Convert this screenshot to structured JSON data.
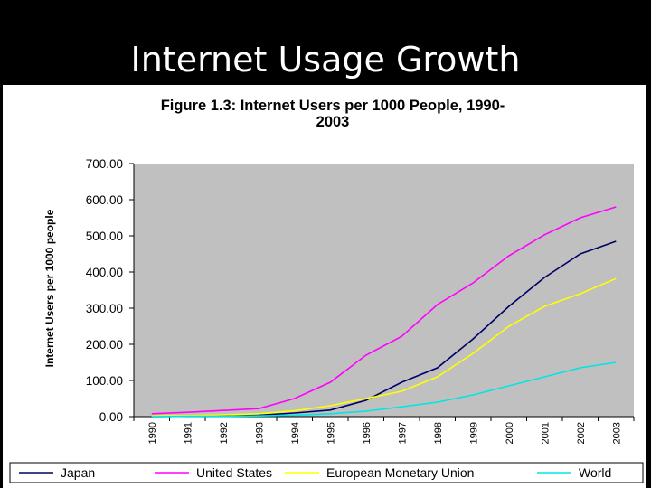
{
  "slide": {
    "title": "Internet Usage Growth"
  },
  "chart_data": {
    "type": "line",
    "title_line1": "Figure 1.3: Internet Users per 1000 People, 1990-",
    "title_line2": "2003",
    "ylabel": "Internet Users per 1000 people",
    "xlabel": "",
    "ylim": [
      0,
      700
    ],
    "yticks": [
      "0.00",
      "100.00",
      "200.00",
      "300.00",
      "400.00",
      "500.00",
      "600.00",
      "700.00"
    ],
    "categories": [
      "1990",
      "1991",
      "1992",
      "1993",
      "1994",
      "1995",
      "1996",
      "1997",
      "1998",
      "1999",
      "2000",
      "2001",
      "2002",
      "2003"
    ],
    "grid": false,
    "legend_position": "bottom",
    "plot_background": "#c0c0c0",
    "series": [
      {
        "name": "Japan",
        "color": "#000066",
        "values": [
          0,
          1,
          2,
          4,
          10,
          18,
          45,
          95,
          135,
          215,
          305,
          385,
          450,
          485
        ]
      },
      {
        "name": "United States",
        "color": "#ff00ff",
        "values": [
          8,
          12,
          17,
          22,
          50,
          95,
          170,
          222,
          310,
          370,
          445,
          503,
          550,
          580
        ]
      },
      {
        "name": "European Monetary Union",
        "color": "#ffff00",
        "values": [
          2,
          3,
          5,
          8,
          16,
          30,
          50,
          70,
          110,
          175,
          250,
          305,
          340,
          382
        ]
      },
      {
        "name": "World",
        "color": "#00e5e5",
        "values": [
          0,
          1,
          1,
          2,
          4,
          8,
          15,
          27,
          40,
          60,
          85,
          110,
          135,
          150
        ]
      }
    ]
  }
}
